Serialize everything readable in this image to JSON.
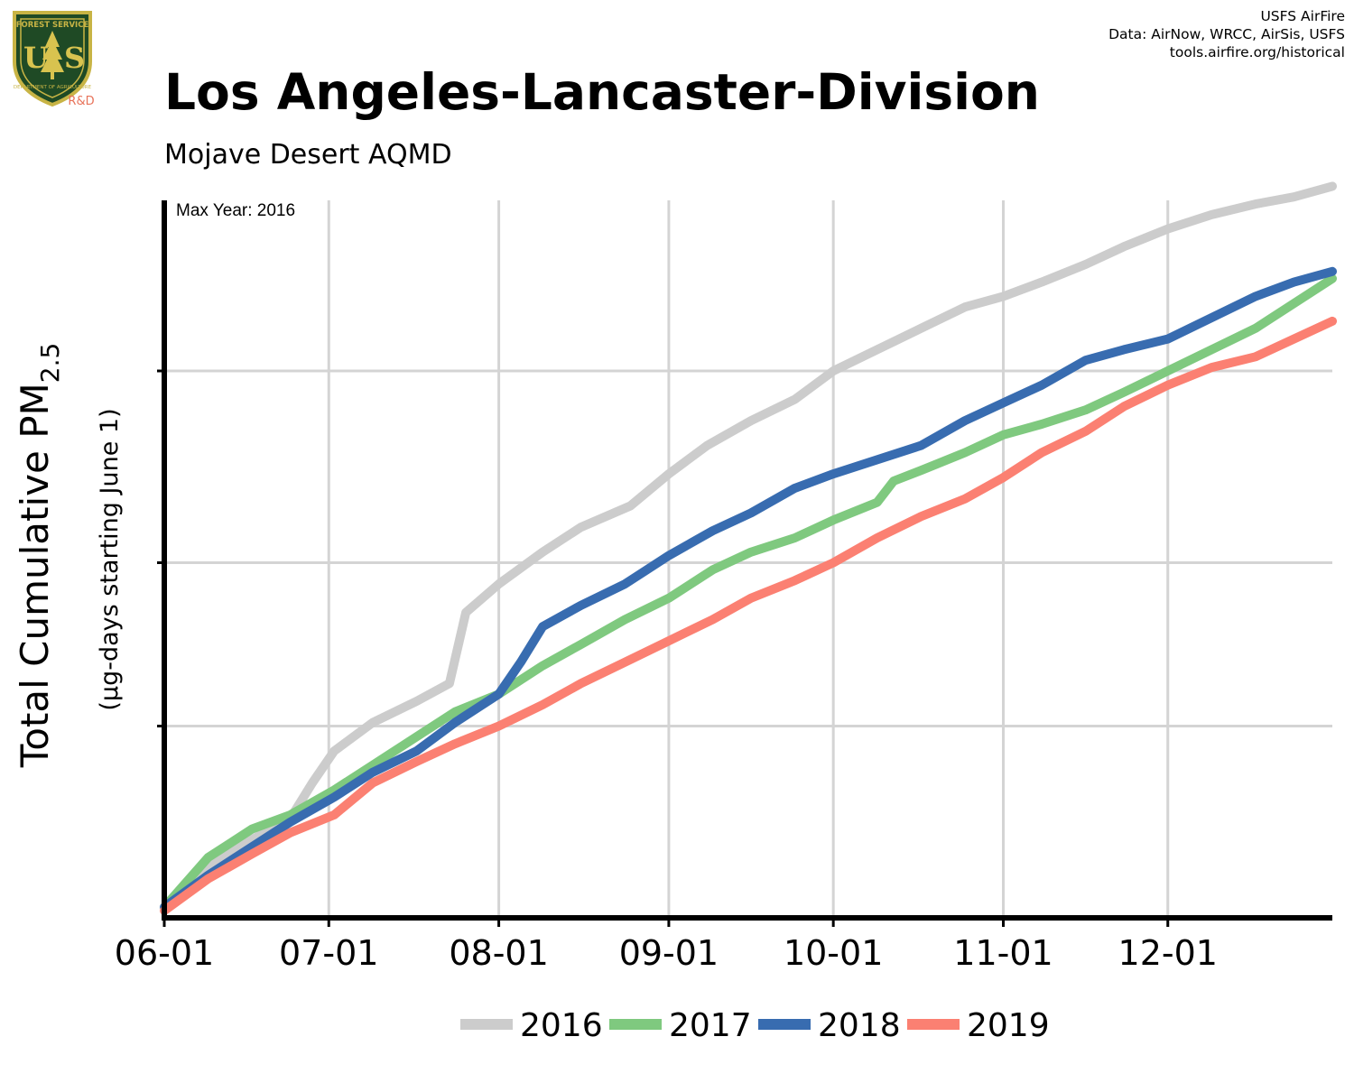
{
  "logo": {
    "top_text": "FOREST SERVICE",
    "letters": "USFS",
    "bottom_text": "DEPARTMENT OF AGRICULTURE",
    "tag": "R&D"
  },
  "credits": {
    "line1": "USFS AirFire",
    "line2": "Data: AirNow, WRCC, AirSis, USFS",
    "line3": "tools.airfire.org/historical"
  },
  "header": {
    "title": "Los Angeles-Lancaster-Division",
    "subtitle": "Mojave Desert AQMD"
  },
  "chart_data": {
    "type": "line",
    "title": "Los Angeles-Lancaster-Division",
    "subtitle": "Mojave Desert AQMD",
    "ylabel": "Total Cumulative PM2.5",
    "ylabel_sub": "(µg-days starting June 1)",
    "annotation": "Max Year: 2016",
    "x_tick_labels": [
      "06-01",
      "07-01",
      "08-01",
      "09-01",
      "10-01",
      "11-01",
      "12-01"
    ],
    "x_tick_days": [
      0,
      30,
      61,
      92,
      122,
      153,
      183
    ],
    "xlim_days": [
      0,
      213
    ],
    "y_ticks_unlabeled": true,
    "grid": true,
    "legend_position": "bottom",
    "x_unit": "days since June 1",
    "y_unit": "relative cumulative (unlabeled axis)",
    "ylim": [
      0,
      1
    ],
    "series": [
      {
        "name": "2016",
        "color": "#cccccc",
        "x": [
          0,
          8,
          16,
          23,
          27,
          31,
          38,
          46,
          52,
          55,
          61,
          69,
          76,
          85,
          92,
          99,
          107,
          115,
          122,
          130,
          138,
          146,
          153,
          160,
          168,
          175,
          183,
          191,
          199,
          206,
          213
        ],
        "y": [
          0.015,
          0.075,
          0.11,
          0.14,
          0.19,
          0.235,
          0.275,
          0.305,
          0.33,
          0.43,
          0.47,
          0.515,
          0.55,
          0.58,
          0.625,
          0.665,
          0.7,
          0.73,
          0.77,
          0.8,
          0.83,
          0.86,
          0.875,
          0.895,
          0.92,
          0.945,
          0.97,
          0.99,
          1.005,
          1.015,
          1.03
        ]
      },
      {
        "name": "2017",
        "color": "#7fc97f",
        "x": [
          0,
          8,
          16,
          23,
          31,
          38,
          46,
          53,
          61,
          69,
          76,
          84,
          92,
          100,
          107,
          115,
          122,
          130,
          133,
          138,
          146,
          153,
          160,
          168,
          175,
          183,
          191,
          199,
          206,
          213
        ],
        "y": [
          0.015,
          0.085,
          0.125,
          0.145,
          0.18,
          0.215,
          0.255,
          0.29,
          0.315,
          0.355,
          0.385,
          0.42,
          0.45,
          0.49,
          0.515,
          0.535,
          0.56,
          0.585,
          0.615,
          0.63,
          0.655,
          0.68,
          0.695,
          0.715,
          0.74,
          0.77,
          0.8,
          0.83,
          0.865,
          0.9
        ]
      },
      {
        "name": "2018",
        "color": "#386cb0",
        "x": [
          0,
          8,
          16,
          23,
          31,
          38,
          46,
          53,
          61,
          65,
          69,
          76,
          84,
          92,
          100,
          107,
          115,
          122,
          130,
          138,
          146,
          153,
          160,
          168,
          175,
          183,
          191,
          199,
          206,
          213
        ],
        "y": [
          0.015,
          0.06,
          0.1,
          0.135,
          0.17,
          0.205,
          0.235,
          0.275,
          0.315,
          0.36,
          0.41,
          0.44,
          0.47,
          0.51,
          0.545,
          0.57,
          0.605,
          0.625,
          0.645,
          0.665,
          0.7,
          0.725,
          0.75,
          0.785,
          0.8,
          0.815,
          0.845,
          0.875,
          0.895,
          0.91
        ]
      },
      {
        "name": "2019",
        "color": "#fb8072",
        "x": [
          0,
          8,
          16,
          23,
          31,
          38,
          46,
          53,
          61,
          69,
          76,
          84,
          92,
          100,
          107,
          115,
          122,
          130,
          138,
          146,
          153,
          160,
          168,
          175,
          183,
          191,
          199,
          206,
          213
        ],
        "y": [
          0.01,
          0.055,
          0.09,
          0.12,
          0.145,
          0.19,
          0.22,
          0.245,
          0.27,
          0.3,
          0.33,
          0.36,
          0.39,
          0.42,
          0.45,
          0.475,
          0.5,
          0.535,
          0.565,
          0.59,
          0.62,
          0.655,
          0.685,
          0.72,
          0.75,
          0.775,
          0.79,
          0.815,
          0.84
        ]
      }
    ]
  }
}
